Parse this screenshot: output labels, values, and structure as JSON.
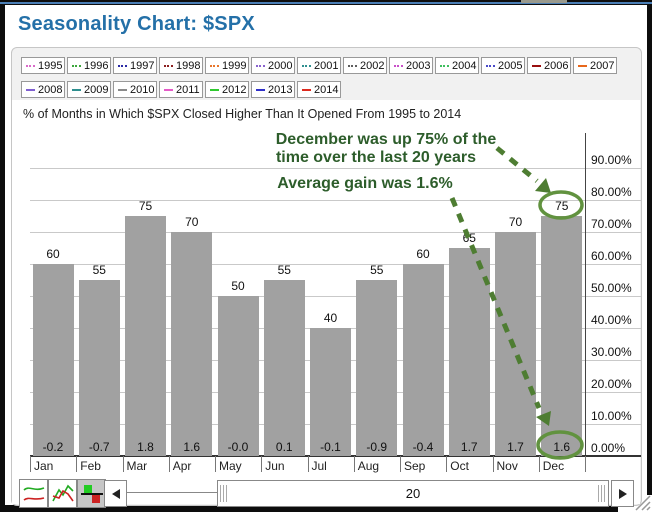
{
  "page": {
    "title": "Seasonality Chart: $SPX",
    "title_color": "#2470A8"
  },
  "subtitle": "% of Months in Which $SPX Closed Higher Than It Opened From 1995 to 2014",
  "legend": {
    "items": [
      {
        "year": "1995",
        "color": "#D96BC9",
        "style": "dashed"
      },
      {
        "year": "1996",
        "color": "#3BA63B",
        "style": "dashed"
      },
      {
        "year": "1997",
        "color": "#2B2BA6",
        "style": "dashed"
      },
      {
        "year": "1998",
        "color": "#8C1F1F",
        "style": "dashed"
      },
      {
        "year": "1999",
        "color": "#E8762C",
        "style": "dashed"
      },
      {
        "year": "2000",
        "color": "#8A63CF",
        "style": "dashed"
      },
      {
        "year": "2001",
        "color": "#2E8F8F",
        "style": "dashed"
      },
      {
        "year": "2002",
        "color": "#5E5E5E",
        "style": "dashed"
      },
      {
        "year": "2003",
        "color": "#C94FC9",
        "style": "dashed"
      },
      {
        "year": "2004",
        "color": "#3FBF5F",
        "style": "dashed"
      },
      {
        "year": "2005",
        "color": "#4A4AC9",
        "style": "dashed"
      },
      {
        "year": "2006",
        "color": "#990F0F",
        "style": "solid"
      },
      {
        "year": "2007",
        "color": "#E8671B",
        "style": "solid"
      },
      {
        "year": "2008",
        "color": "#7F5FD0",
        "style": "solid"
      },
      {
        "year": "2009",
        "color": "#2E8F8F",
        "style": "solid"
      },
      {
        "year": "2010",
        "color": "#8A8A8A",
        "style": "solid"
      },
      {
        "year": "2011",
        "color": "#E55BC8",
        "style": "solid"
      },
      {
        "year": "2012",
        "color": "#2FC92F",
        "style": "solid"
      },
      {
        "year": "2013",
        "color": "#2F2FC9",
        "style": "solid"
      },
      {
        "year": "2014",
        "color": "#DD2A1E",
        "style": "solid"
      }
    ]
  },
  "chart_data": {
    "type": "bar",
    "title": "% of Months in Which $SPX Closed Higher Than It Opened From 1995 to 2014",
    "categories": [
      "Jan",
      "Feb",
      "Mar",
      "Apr",
      "May",
      "Jun",
      "Jul",
      "Aug",
      "Sep",
      "Oct",
      "Nov",
      "Dec"
    ],
    "series": [
      {
        "name": "% of months closed higher than open",
        "unit": "%",
        "values": [
          60,
          55,
          75,
          70,
          50,
          55,
          40,
          55,
          60,
          65,
          70,
          75
        ]
      },
      {
        "name": "average gain %",
        "labels": [
          "-0.2",
          "-0.7",
          "1.8",
          "1.6",
          "-0.0",
          "0.1",
          "-0.1",
          "-0.9",
          "-0.4",
          "1.7",
          "1.7",
          "1.6"
        ]
      }
    ],
    "ylim": [
      0,
      100
    ],
    "y_ticks": [
      "0.00%",
      "10.00%",
      "20.00%",
      "30.00%",
      "40.00%",
      "50.00%",
      "60.00%",
      "70.00%",
      "80.00%",
      "90.00%"
    ],
    "grid": true,
    "legend_position": "top",
    "bar_color": "#A1A1A1"
  },
  "annotations": {
    "line1": "December was up 75% of the",
    "line2": "time over the last 20 years",
    "line3": "Average gain was 1.6%",
    "circled_values": [
      "75",
      "1.6"
    ],
    "color": "#2D5D2B",
    "arrow_color": "#4E7D32",
    "ellipse_color": "#61923F"
  },
  "toolbar": {
    "view_buttons": [
      {
        "name": "line-chart-view",
        "selected": false
      },
      {
        "name": "performance-chart-view",
        "selected": false
      },
      {
        "name": "seasonality-bar-view",
        "selected": true
      }
    ],
    "scrollbar": {
      "value": "20"
    }
  }
}
